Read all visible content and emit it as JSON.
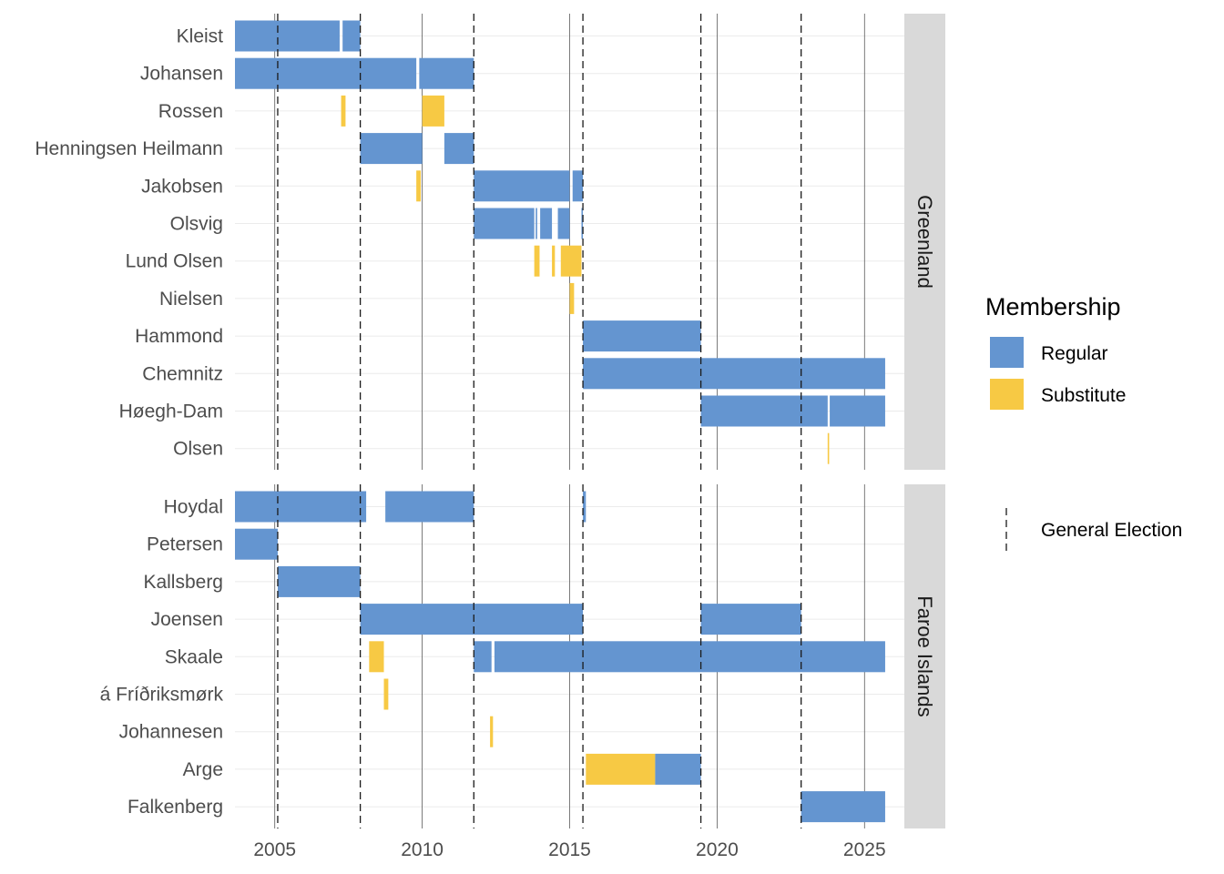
{
  "chart_data": {
    "type": "timeline",
    "x_ticks": [
      2005,
      2010,
      2015,
      2020,
      2025
    ],
    "xlim": [
      2003.65,
      2026.35
    ],
    "elections": [
      2005.1,
      2007.9,
      2011.75,
      2015.45,
      2019.45,
      2022.85
    ],
    "legend": {
      "title": "Membership",
      "items": [
        {
          "label": "Regular",
          "color": "#6495d0"
        },
        {
          "label": "Substitute",
          "color": "#f7c944"
        }
      ],
      "election_label": "General Election"
    },
    "panels": [
      {
        "name": "Greenland",
        "rows": [
          {
            "name": "Kleist",
            "segments": [
              [
                2003.65,
                2007.2,
                "Regular"
              ],
              [
                2007.3,
                2007.9,
                "Regular"
              ]
            ]
          },
          {
            "name": "Johansen",
            "segments": [
              [
                2003.65,
                2009.8,
                "Regular"
              ],
              [
                2009.9,
                2011.75,
                "Regular"
              ]
            ]
          },
          {
            "name": "Rossen",
            "segments": [
              [
                2007.25,
                2007.4,
                "Substitute"
              ],
              [
                2010.0,
                2010.75,
                "Substitute"
              ]
            ]
          },
          {
            "name": "Henningsen Heilmann",
            "segments": [
              [
                2007.9,
                2010.0,
                "Regular"
              ],
              [
                2010.75,
                2011.75,
                "Regular"
              ]
            ]
          },
          {
            "name": "Jakobsen",
            "segments": [
              [
                2009.8,
                2009.95,
                "Substitute"
              ],
              [
                2011.75,
                2015.0,
                "Regular"
              ],
              [
                2015.1,
                2015.45,
                "Regular"
              ]
            ]
          },
          {
            "name": "Olsvig",
            "segments": [
              [
                2011.75,
                2013.8,
                "Regular"
              ],
              [
                2013.85,
                2013.9,
                "Regular"
              ],
              [
                2014.0,
                2014.4,
                "Regular"
              ],
              [
                2014.6,
                2015.0,
                "Regular"
              ],
              [
                2015.4,
                2015.45,
                "Regular"
              ]
            ]
          },
          {
            "name": "Lund Olsen",
            "segments": [
              [
                2013.8,
                2013.98,
                "Substitute"
              ],
              [
                2014.4,
                2014.5,
                "Substitute"
              ],
              [
                2014.7,
                2015.4,
                "Substitute"
              ]
            ]
          },
          {
            "name": "Nielsen",
            "segments": [
              [
                2015.0,
                2015.15,
                "Substitute"
              ]
            ]
          },
          {
            "name": "Hammond",
            "segments": [
              [
                2015.45,
                2019.45,
                "Regular"
              ]
            ]
          },
          {
            "name": "Chemnitz",
            "segments": [
              [
                2015.45,
                2025.7,
                "Regular"
              ]
            ]
          },
          {
            "name": "Høegh-Dam",
            "segments": [
              [
                2019.45,
                2023.75,
                "Regular"
              ],
              [
                2023.82,
                2025.7,
                "Regular"
              ]
            ]
          },
          {
            "name": "Olsen",
            "segments": [
              [
                2023.75,
                2023.8,
                "Substitute"
              ]
            ]
          }
        ]
      },
      {
        "name": "Faroe Islands",
        "rows": [
          {
            "name": "Hoydal",
            "segments": [
              [
                2003.65,
                2008.1,
                "Regular"
              ],
              [
                2008.75,
                2011.75,
                "Regular"
              ],
              [
                2015.45,
                2015.55,
                "Regular"
              ]
            ]
          },
          {
            "name": "Petersen",
            "segments": [
              [
                2003.65,
                2005.1,
                "Regular"
              ]
            ]
          },
          {
            "name": "Kallsberg",
            "segments": [
              [
                2005.1,
                2007.9,
                "Regular"
              ]
            ]
          },
          {
            "name": "Joensen",
            "segments": [
              [
                2007.9,
                2015.45,
                "Regular"
              ],
              [
                2019.45,
                2022.85,
                "Regular"
              ]
            ]
          },
          {
            "name": "Skaale",
            "segments": [
              [
                2008.2,
                2008.7,
                "Substitute"
              ],
              [
                2011.75,
                2012.35,
                "Regular"
              ],
              [
                2012.45,
                2025.7,
                "Regular"
              ]
            ]
          },
          {
            "name": "á Fríðriksmørk",
            "segments": [
              [
                2008.7,
                2008.85,
                "Substitute"
              ]
            ]
          },
          {
            "name": "Johannesen",
            "segments": [
              [
                2012.3,
                2012.4,
                "Substitute"
              ]
            ]
          },
          {
            "name": "Arge",
            "segments": [
              [
                2015.55,
                2017.9,
                "Substitute"
              ],
              [
                2017.9,
                2019.45,
                "Regular"
              ]
            ]
          },
          {
            "name": "Falkenberg",
            "segments": [
              [
                2022.85,
                2025.7,
                "Regular"
              ]
            ]
          }
        ]
      }
    ]
  }
}
